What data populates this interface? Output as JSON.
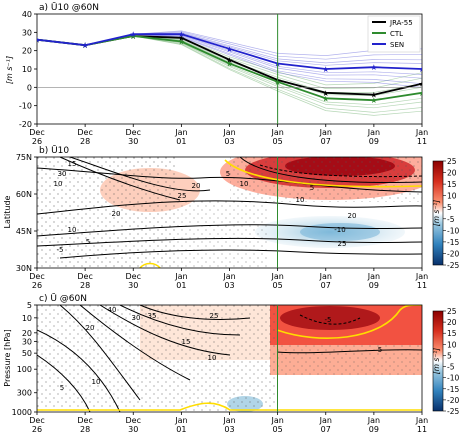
{
  "chart_data": [
    {
      "type": "line",
      "title": "a) Ū10 @60N",
      "ylabel": "[m s⁻¹]",
      "x": [
        "Dec 26",
        "Dec 28",
        "Dec 30",
        "Jan 01",
        "Jan 03",
        "Jan 05",
        "Jan 07",
        "Jan 09",
        "Jan 11"
      ],
      "ylim": [
        -20,
        40
      ],
      "yticks": [
        -20,
        -10,
        0,
        10,
        20,
        30,
        40
      ],
      "xticks": [
        "Dec\n26",
        "Dec\n28",
        "Dec\n30",
        "Jan\n01",
        "Jan\n03",
        "Jan\n05",
        "Jan\n07",
        "Jan\n09",
        "Jan\n11"
      ],
      "vline": "Jan 05",
      "legend_position": "top-right",
      "series": [
        {
          "name": "JRA-55",
          "color": "#000000",
          "values": [
            26,
            23,
            28,
            27,
            15,
            4,
            -3,
            -4,
            2
          ]
        },
        {
          "name": "CTL",
          "color": "#2e8b2e",
          "values": [
            26,
            23,
            28,
            25,
            13,
            3,
            -6,
            -7,
            -3
          ]
        },
        {
          "name": "SEN",
          "color": "#2222cc",
          "values": [
            26,
            23,
            29,
            29,
            21,
            13,
            10,
            11,
            10
          ]
        }
      ]
    },
    {
      "type": "heatmap",
      "title": "b) Ū10",
      "ylabel": "Latitude",
      "yticks": [
        "30N",
        "45N",
        "60N",
        "75N"
      ],
      "colorbar_label": "[m s⁻¹]",
      "colorbar_ticks": [
        25,
        20,
        15,
        10,
        5,
        -5,
        -10,
        -15,
        -20,
        -25
      ],
      "contour_labels": [
        "5",
        "10",
        "20",
        "25",
        "30",
        "15",
        "10",
        "5",
        "20",
        "-10",
        "25",
        "20",
        "10",
        "5",
        "-5",
        "10"
      ]
    },
    {
      "type": "heatmap",
      "title": "c) Ū @60N",
      "ylabel": "Pressure [hPa]",
      "yticks": [
        "5",
        "10",
        "20",
        "30",
        "50",
        "100",
        "300",
        "1000"
      ],
      "colorbar_label": "[m s⁻¹]",
      "colorbar_ticks": [
        25,
        20,
        15,
        10,
        5,
        -5,
        -10,
        -15,
        -20,
        -25
      ],
      "contour_labels": [
        "40",
        "35",
        "25",
        "30",
        "20",
        "15",
        "10",
        "5",
        "-5",
        "10",
        "5"
      ]
    }
  ]
}
